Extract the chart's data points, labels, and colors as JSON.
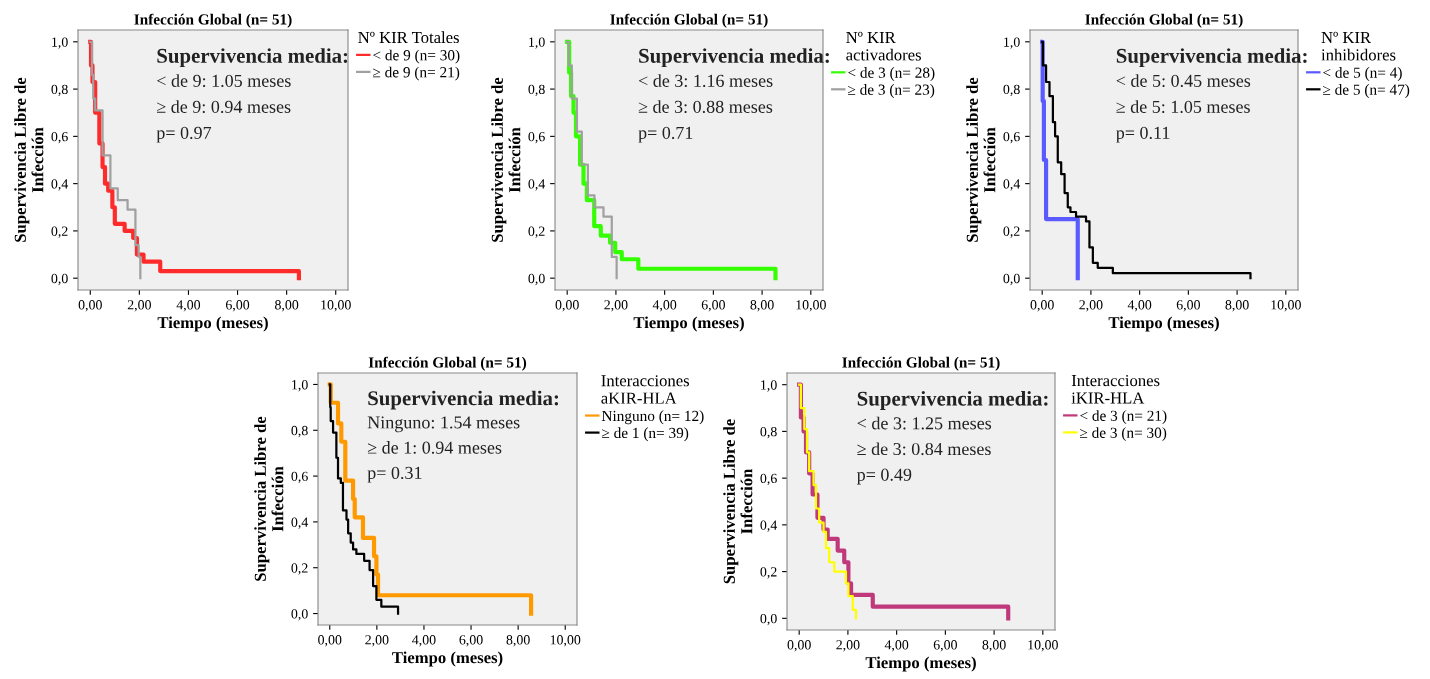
{
  "chart_data": [
    {
      "type": "step",
      "title": "Infección Global (n= 51)",
      "xlabel": "Tiempo (meses)",
      "ylabel": "Supervivencia Libre de\nInfección",
      "legend_title": "Nº KIR Totales",
      "legend": "right",
      "xlim": [
        -0.5,
        10.5
      ],
      "ylim": [
        -0.05,
        1.05
      ],
      "xticks": [
        {
          "value": 0,
          "label": "0,00"
        },
        {
          "value": 2,
          "label": "2,00"
        },
        {
          "value": 4,
          "label": "4,00"
        },
        {
          "value": 6,
          "label": "6,00"
        },
        {
          "value": 8,
          "label": "8,00"
        },
        {
          "value": 10,
          "label": "10,00"
        }
      ],
      "yticks": [
        {
          "value": 0,
          "label": "0,0"
        },
        {
          "value": 0.2,
          "label": "0,2"
        },
        {
          "value": 0.4,
          "label": "0,4"
        },
        {
          "value": 0.6,
          "label": "0,6"
        },
        {
          "value": 0.8,
          "label": "0,8"
        },
        {
          "value": 1,
          "label": "1,0"
        }
      ],
      "annotations": [
        "Supervivencia media:",
        "< de 9: 1.05 meses",
        "≥ de 9: 0.94 meses",
        "p= 0.97"
      ],
      "series": [
        {
          "name": "< de 9 (n= 30)",
          "color": "#ff2a2a",
          "x": [
            0,
            0.03,
            0.09,
            0.2,
            0.37,
            0.5,
            0.6,
            0.73,
            0.9,
            1.0,
            1.4,
            1.75,
            1.9,
            2.17,
            2.85,
            8.5
          ],
          "values": [
            1,
            0.9,
            0.83,
            0.7,
            0.57,
            0.47,
            0.4,
            0.37,
            0.3,
            0.23,
            0.2,
            0.17,
            0.1,
            0.07,
            0.03,
            0
          ]
        },
        {
          "name": "≥ de 9 (n= 21)",
          "color": "#a0a0a0",
          "x": [
            0,
            0.07,
            0.12,
            0.2,
            0.5,
            0.82,
            1.12,
            1.52,
            1.84,
            1.97,
            2.04
          ],
          "values": [
            1,
            0.86,
            0.76,
            0.71,
            0.52,
            0.38,
            0.33,
            0.29,
            0.14,
            0.09,
            0
          ]
        }
      ]
    },
    {
      "type": "step",
      "title": "Infección Global (n= 51)",
      "xlabel": "Tiempo (meses)",
      "ylabel": "Supervivencia Libre de\nInfección",
      "legend_title": "Nº KIR\nactivadores",
      "legend": "right",
      "xlim": [
        -0.5,
        10.5
      ],
      "ylim": [
        -0.05,
        1.05
      ],
      "xticks": [
        {
          "value": 0,
          "label": "0,00"
        },
        {
          "value": 2,
          "label": "2,00"
        },
        {
          "value": 4,
          "label": "4,00"
        },
        {
          "value": 6,
          "label": "6,00"
        },
        {
          "value": 8,
          "label": "8,00"
        },
        {
          "value": 10,
          "label": "10,00"
        }
      ],
      "yticks": [
        {
          "value": 0,
          "label": "0,0"
        },
        {
          "value": 0.2,
          "label": "0,2"
        },
        {
          "value": 0.4,
          "label": "0,4"
        },
        {
          "value": 0.6,
          "label": "0,6"
        },
        {
          "value": 0.8,
          "label": "0,8"
        },
        {
          "value": 1,
          "label": "1,0"
        }
      ],
      "annotations": [
        "Supervivencia media:",
        "< de 3: 1.16 meses",
        "≥ de 3: 0.88 meses",
        "p= 0.71"
      ],
      "series": [
        {
          "name": "< de 3 (n= 28)",
          "color": "#33ff00",
          "x": [
            0,
            0.08,
            0.16,
            0.26,
            0.36,
            0.53,
            0.67,
            0.81,
            1.11,
            1.38,
            1.76,
            1.97,
            2.24,
            2.92,
            8.55
          ],
          "values": [
            1,
            0.87,
            0.77,
            0.7,
            0.6,
            0.48,
            0.4,
            0.33,
            0.22,
            0.18,
            0.15,
            0.11,
            0.08,
            0.04,
            0
          ]
        },
        {
          "name": "≥ de 3 (n= 23)",
          "color": "#a0a0a0",
          "x": [
            0,
            0.06,
            0.19,
            0.4,
            0.6,
            0.85,
            1.12,
            1.49,
            1.83,
            2.03
          ],
          "values": [
            1,
            0.9,
            0.76,
            0.62,
            0.48,
            0.35,
            0.3,
            0.26,
            0.09,
            0
          ]
        }
      ]
    },
    {
      "type": "step",
      "title": "Infección Global (n= 51)",
      "xlabel": "Tiempo (meses)",
      "ylabel": "Supervivencia Libre de\nInfección",
      "legend_title": "Nº KIR\ninhibidores",
      "legend": "right",
      "xlim": [
        -0.5,
        10.5
      ],
      "ylim": [
        -0.05,
        1.05
      ],
      "xticks": [
        {
          "value": 0,
          "label": "0,00"
        },
        {
          "value": 2,
          "label": "2,00"
        },
        {
          "value": 4,
          "label": "4,00"
        },
        {
          "value": 6,
          "label": "6,00"
        },
        {
          "value": 8,
          "label": "8,00"
        },
        {
          "value": 10,
          "label": "10,00"
        }
      ],
      "yticks": [
        {
          "value": 0,
          "label": "0,0"
        },
        {
          "value": 0.2,
          "label": "0,2"
        },
        {
          "value": 0.4,
          "label": "0,4"
        },
        {
          "value": 0.6,
          "label": "0,6"
        },
        {
          "value": 0.8,
          "label": "0,8"
        },
        {
          "value": 1,
          "label": "1,0"
        }
      ],
      "annotations": [
        "Supervivencia media:",
        "< de 5: 0.45 meses",
        "≥ de 5: 1.05 meses",
        "p= 0.11"
      ],
      "series": [
        {
          "name": "< de 5 (n= 4)",
          "color": "#5a5aff",
          "x": [
            0,
            0.02,
            0.07,
            0.16,
            1.46
          ],
          "values": [
            1,
            0.75,
            0.5,
            0.25,
            0
          ]
        },
        {
          "name": "≥ de 5 (n= 47)",
          "color": "#000000",
          "x": [
            0,
            0.03,
            0.16,
            0.3,
            0.44,
            0.53,
            0.64,
            0.78,
            0.92,
            1.05,
            1.16,
            1.39,
            1.8,
            1.94,
            2.08,
            2.28,
            2.9,
            8.55
          ],
          "values": [
            1,
            0.9,
            0.83,
            0.77,
            0.66,
            0.6,
            0.49,
            0.44,
            0.36,
            0.3,
            0.28,
            0.26,
            0.24,
            0.13,
            0.065,
            0.044,
            0.021,
            0
          ]
        }
      ]
    },
    {
      "type": "step",
      "title": "Infección Global (n= 51)",
      "xlabel": "Tiempo (meses)",
      "ylabel": "Supervivencia Libre de\nInfección",
      "legend_title": "Interacciones\naKIR-HLA",
      "legend": "right",
      "xlim": [
        -0.5,
        10.5
      ],
      "ylim": [
        -0.05,
        1.05
      ],
      "xticks": [
        {
          "value": 0,
          "label": "0,00"
        },
        {
          "value": 2,
          "label": "2,00"
        },
        {
          "value": 4,
          "label": "4,00"
        },
        {
          "value": 6,
          "label": "6,00"
        },
        {
          "value": 8,
          "label": "8,00"
        },
        {
          "value": 10,
          "label": "10,00"
        }
      ],
      "yticks": [
        {
          "value": 0,
          "label": "0,0"
        },
        {
          "value": 0.2,
          "label": "0,2"
        },
        {
          "value": 0.4,
          "label": "0,4"
        },
        {
          "value": 0.6,
          "label": "0,6"
        },
        {
          "value": 0.8,
          "label": "0,8"
        },
        {
          "value": 1,
          "label": "1,0"
        }
      ],
      "annotations": [
        "Supervivencia media:",
        "Ninguno: 1.54 meses",
        "≥ de 1: 0.94 meses",
        "p= 0.31"
      ],
      "series": [
        {
          "name": "Ninguno (n= 12)",
          "color": "#ff9900",
          "x": [
            0,
            0.04,
            0.35,
            0.49,
            0.66,
            0.99,
            1.06,
            1.41,
            1.88,
            1.98,
            2.05,
            8.55
          ],
          "values": [
            1,
            0.92,
            0.83,
            0.75,
            0.58,
            0.5,
            0.42,
            0.33,
            0.25,
            0.17,
            0.08,
            0
          ]
        },
        {
          "name": "≥ de 1 (n= 39)",
          "color": "#000000",
          "x": [
            0,
            0.02,
            0.04,
            0.14,
            0.28,
            0.35,
            0.47,
            0.56,
            0.71,
            0.78,
            0.89,
            0.99,
            1.13,
            1.46,
            1.69,
            1.84,
            1.98,
            2.19,
            2.9
          ],
          "values": [
            1,
            0.9,
            0.84,
            0.79,
            0.68,
            0.59,
            0.57,
            0.45,
            0.41,
            0.35,
            0.31,
            0.28,
            0.26,
            0.23,
            0.19,
            0.12,
            0.06,
            0.03,
            0
          ]
        }
      ]
    },
    {
      "type": "step",
      "title": "Infección Global (n= 51)",
      "xlabel": "Tiempo (meses)",
      "ylabel": "Supervivencia Libre de\nInfección",
      "legend_title": "Interacciones\niKIR-HLA",
      "legend": "right",
      "xlim": [
        -0.5,
        10.5
      ],
      "ylim": [
        -0.05,
        1.05
      ],
      "xticks": [
        {
          "value": 0,
          "label": "0,00"
        },
        {
          "value": 2,
          "label": "2,00"
        },
        {
          "value": 4,
          "label": "4,00"
        },
        {
          "value": 6,
          "label": "6,00"
        },
        {
          "value": 8,
          "label": "8,00"
        },
        {
          "value": 10,
          "label": "10,00"
        }
      ],
      "yticks": [
        {
          "value": 0,
          "label": "0,0"
        },
        {
          "value": 0.2,
          "label": "0,2"
        },
        {
          "value": 0.4,
          "label": "0,4"
        },
        {
          "value": 0.6,
          "label": "0,6"
        },
        {
          "value": 0.8,
          "label": "0,8"
        },
        {
          "value": 1,
          "label": "1,0"
        }
      ],
      "annotations": [
        "Supervivencia media:",
        "< de 3: 1.25 meses",
        "≥ de 3: 0.84 meses",
        "p= 0.49"
      ],
      "series": [
        {
          "name": "< de 3 (n= 21)",
          "color": "#c0397b",
          "x": [
            0,
            0.07,
            0.18,
            0.28,
            0.41,
            0.55,
            0.75,
            1.0,
            1.17,
            1.58,
            1.85,
            2.02,
            2.13,
            3.02,
            8.58
          ],
          "values": [
            1,
            0.86,
            0.8,
            0.71,
            0.62,
            0.53,
            0.43,
            0.38,
            0.34,
            0.29,
            0.24,
            0.15,
            0.1,
            0.05,
            0
          ]
        },
        {
          "name": "≥ de 3 (n= 30)",
          "color": "#ffff00",
          "x": [
            0,
            0.07,
            0.21,
            0.32,
            0.41,
            0.59,
            0.69,
            0.82,
            1.0,
            1.1,
            1.23,
            1.44,
            1.92,
            2.02,
            2.2,
            2.33
          ],
          "values": [
            1,
            0.9,
            0.81,
            0.71,
            0.63,
            0.57,
            0.47,
            0.41,
            0.37,
            0.3,
            0.24,
            0.2,
            0.15,
            0.095,
            0.036,
            0
          ]
        }
      ]
    }
  ]
}
